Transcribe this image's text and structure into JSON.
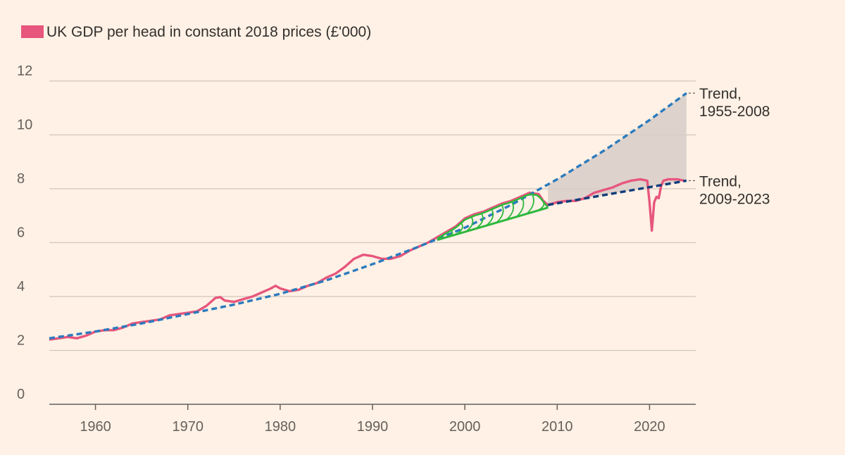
{
  "chart_data": {
    "type": "line",
    "legend": {
      "label": "UK GDP per head in constant 2018 prices (£'000)",
      "color": "#e7567d"
    },
    "x_ticks": [
      "1960",
      "1970",
      "1980",
      "1990",
      "2000",
      "2010",
      "2020"
    ],
    "x_tick_values": [
      1960,
      1970,
      1980,
      1990,
      2000,
      2010,
      2020
    ],
    "y_ticks": [
      "0",
      "2",
      "4",
      "6",
      "8",
      "10",
      "12"
    ],
    "y_tick_values": [
      0,
      2,
      4,
      6,
      8,
      10,
      12
    ],
    "xlim": [
      1955,
      2025
    ],
    "ylim": [
      0,
      12
    ],
    "grid": true,
    "series": [
      {
        "name": "UK GDP per head in constant 2018 prices (£'000)",
        "color": "#e7567d",
        "style": "solid",
        "x": [
          1955,
          1956,
          1957,
          1958,
          1959,
          1960,
          1961,
          1962,
          1963,
          1964,
          1965,
          1966,
          1967,
          1968,
          1969,
          1970,
          1971,
          1972,
          1973,
          1973.5,
          1974,
          1975,
          1976,
          1977,
          1978,
          1979,
          1979.5,
          1980,
          1981,
          1982,
          1983,
          1984,
          1985,
          1986,
          1987,
          1988,
          1989,
          1990,
          1991,
          1992,
          1993,
          1994,
          1995,
          1996,
          1997,
          1998,
          1999,
          2000,
          2001,
          2002,
          2003,
          2004,
          2005,
          2006,
          2007,
          2008,
          2008.5,
          2009,
          2009.5,
          2010,
          2011,
          2012,
          2013,
          2014,
          2015,
          2016,
          2017,
          2018,
          2019,
          2019.75,
          2020.0,
          2020.25,
          2020.5,
          2020.75,
          2021.0,
          2021.25,
          2021.5,
          2022,
          2023,
          2023.75
        ],
        "y": [
          2.4,
          2.45,
          2.5,
          2.45,
          2.55,
          2.7,
          2.75,
          2.75,
          2.85,
          3.0,
          3.05,
          3.1,
          3.15,
          3.3,
          3.35,
          3.4,
          3.45,
          3.65,
          3.95,
          3.98,
          3.85,
          3.8,
          3.9,
          4.0,
          4.15,
          4.3,
          4.4,
          4.3,
          4.2,
          4.25,
          4.4,
          4.5,
          4.7,
          4.85,
          5.1,
          5.4,
          5.55,
          5.5,
          5.4,
          5.4,
          5.5,
          5.7,
          5.85,
          6.0,
          6.2,
          6.4,
          6.6,
          6.9,
          7.05,
          7.15,
          7.3,
          7.45,
          7.55,
          7.7,
          7.85,
          7.8,
          7.55,
          7.4,
          7.45,
          7.5,
          7.55,
          7.55,
          7.65,
          7.85,
          7.95,
          8.05,
          8.2,
          8.3,
          8.35,
          8.3,
          7.5,
          6.45,
          7.5,
          7.7,
          7.65,
          8.1,
          8.3,
          8.35,
          8.35,
          8.3
        ]
      },
      {
        "name": "Trend, 1955-2008",
        "color": "#2b7bbd",
        "style": "dashed",
        "x": [
          1955,
          1960,
          1965,
          1970,
          1975,
          1980,
          1985,
          1990,
          1995,
          2000,
          2005,
          2010,
          2015,
          2020,
          2024
        ],
        "y": [
          2.45,
          2.7,
          3.0,
          3.35,
          3.7,
          4.1,
          4.6,
          5.2,
          5.85,
          6.55,
          7.4,
          8.35,
          9.4,
          10.55,
          11.55
        ]
      },
      {
        "name": "Trend, 2009-2023",
        "color": "#0f3c7a",
        "style": "dashed",
        "x": [
          2009,
          2024
        ],
        "y": [
          7.4,
          8.3
        ]
      }
    ],
    "shaded_gap": {
      "color": "#d8ccc8",
      "x_start": 2009,
      "x_end": 2024
    },
    "annotations": [
      {
        "lines": [
          "Trend,",
          "1955-2008"
        ],
        "anchor_y": 11.55
      },
      {
        "lines": [
          "Trend,",
          "2009-2023"
        ],
        "anchor_y": 8.3
      }
    ],
    "scribble_overlay": {
      "color": "#2db83d",
      "x_start": 1997,
      "x_end": 2009
    }
  }
}
